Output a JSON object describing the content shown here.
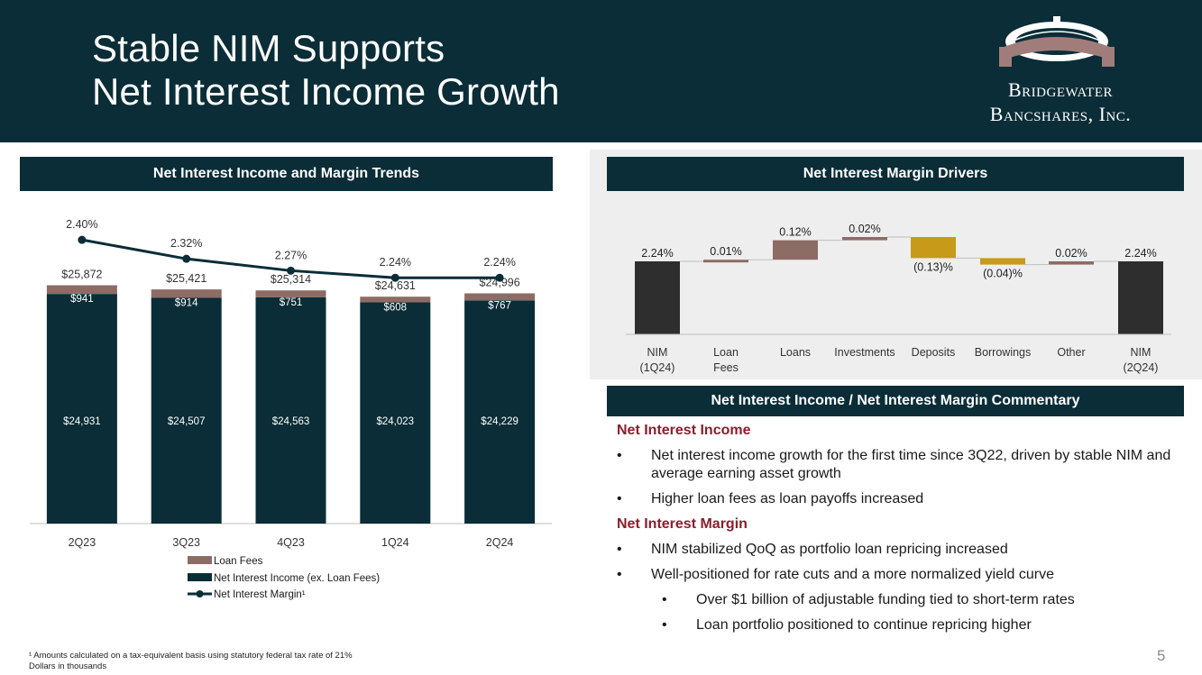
{
  "title_line1": "Stable NIM Supports",
  "title_line2": "Net Interest Income Growth",
  "logo": {
    "line1": "Bridgewater",
    "line2": "Bancshares, Inc."
  },
  "left_panel": {
    "title": "Net Interest Income and Margin Trends"
  },
  "right_panel": {
    "title": "Net Interest Margin Drivers"
  },
  "commentary_panel": {
    "title": "Net Interest Income / Net Interest Margin Commentary",
    "sections": [
      {
        "heading": "Net Interest Income",
        "bullets": [
          "Net interest income growth for the first time since 3Q22, driven by stable NIM and average earning asset growth",
          "Higher loan fees as loan payoffs increased"
        ]
      },
      {
        "heading": "Net Interest Margin",
        "bullets": [
          "NIM stabilized QoQ as portfolio loan repricing increased",
          "Well-positioned for rate cuts and a more normalized yield curve"
        ],
        "sub_bullets": [
          "Over $1 billion of adjustable funding tied to short-term rates",
          "Loan portfolio positioned to continue repricing higher"
        ]
      }
    ],
    "bullet_char": "•"
  },
  "footnote": {
    "line1": "¹ Amounts calculated on a tax-equivalent basis using statutory federal tax rate of 21%",
    "line2": "Dollars in thousands"
  },
  "page_number": "5",
  "colors": {
    "navy": "#0a2d37",
    "loan_fees": "#8c6c65",
    "nim_line": "#0a2d37",
    "nim_bar": "#2e2e2e",
    "positive": "#8c6c65",
    "negative": "#c79a19"
  },
  "chart_data": [
    {
      "type": "bar",
      "stacked": true,
      "title": "Net Interest Income and Margin Trends",
      "categories": [
        "2Q23",
        "3Q23",
        "4Q23",
        "1Q24",
        "2Q24"
      ],
      "series": [
        {
          "name": "Net Interest Income (ex. Loan Fees)",
          "values": [
            24931,
            24507,
            24563,
            24023,
            24229
          ],
          "labels": [
            "$24,931",
            "$24,507",
            "$24,563",
            "$24,023",
            "$24,229"
          ]
        },
        {
          "name": "Loan Fees",
          "values": [
            941,
            914,
            751,
            608,
            767
          ],
          "labels": [
            "$941",
            "$914",
            "$751",
            "$608",
            "$767"
          ]
        }
      ],
      "totals": {
        "values": [
          25872,
          25421,
          25314,
          24631,
          24996
        ],
        "labels": [
          "$25,872",
          "$25,421",
          "$25,314",
          "$24,631",
          "$24,996"
        ]
      },
      "line": {
        "name": "Net Interest Margin¹",
        "values": [
          2.4,
          2.32,
          2.27,
          2.24,
          2.24
        ],
        "labels": [
          "2.40%",
          "2.32%",
          "2.27%",
          "2.24%",
          "2.24%"
        ],
        "ylim": [
          2.1,
          2.45
        ]
      },
      "ylim": [
        0,
        27000
      ],
      "legend": [
        "Loan Fees",
        "Net Interest Income (ex. Loan Fees)",
        "Net Interest Margin¹"
      ],
      "legend_position": "bottom-center"
    },
    {
      "type": "waterfall",
      "title": "Net Interest Margin Drivers",
      "steps": [
        {
          "label": "NIM\n(1Q24)",
          "kind": "total",
          "value": 2.24,
          "text": "2.24%"
        },
        {
          "label": "Loan\nFees",
          "kind": "delta",
          "value": 0.01,
          "text": "0.01%"
        },
        {
          "label": "Loans",
          "kind": "delta",
          "value": 0.12,
          "text": "0.12%"
        },
        {
          "label": "Investments",
          "kind": "delta",
          "value": 0.02,
          "text": "0.02%"
        },
        {
          "label": "Deposits",
          "kind": "delta",
          "value": -0.13,
          "text": "(0.13)%"
        },
        {
          "label": "Borrowings",
          "kind": "delta",
          "value": -0.04,
          "text": "(0.04)%"
        },
        {
          "label": "Other",
          "kind": "delta",
          "value": 0.02,
          "text": "0.02%"
        },
        {
          "label": "NIM\n(2Q24)",
          "kind": "total",
          "value": 2.24,
          "text": "2.24%"
        }
      ]
    }
  ]
}
